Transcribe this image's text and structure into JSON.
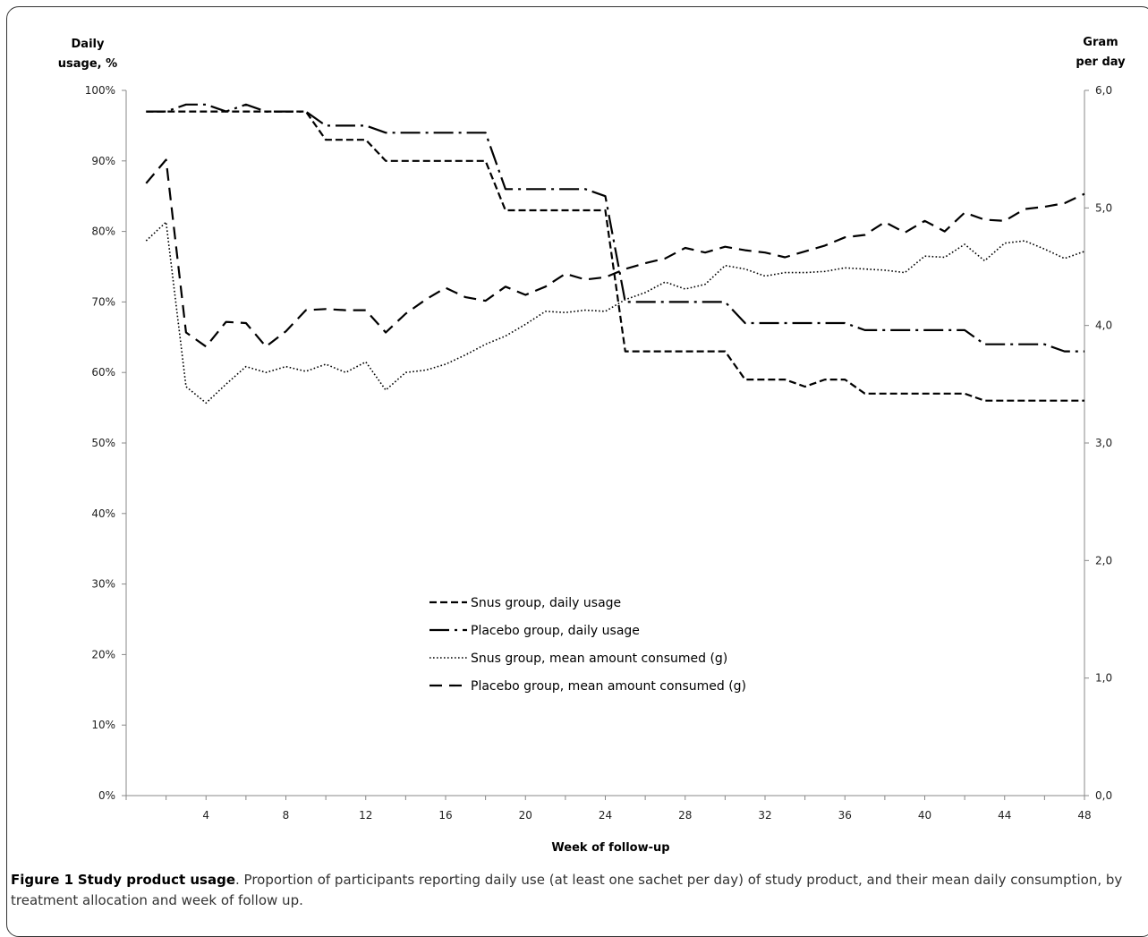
{
  "caption": {
    "label": "Figure 1",
    "title": "Study product usage",
    "text": ". Proportion of participants reporting daily use (at least one sachet per day) of study product, and their mean daily consumption, by treatment allocation and week of follow up."
  },
  "chart_data": {
    "type": "line",
    "xlabel": "Week of follow-up",
    "ylabel_left": [
      "Daily",
      "usage, %"
    ],
    "ylabel_right": [
      "Gram",
      "per day"
    ],
    "xlim": [
      0,
      48
    ],
    "x_ticks": [
      "4",
      "8",
      "12",
      "16",
      "20",
      "24",
      "28",
      "32",
      "36",
      "40",
      "44",
      "48"
    ],
    "ylim_left": [
      0,
      100
    ],
    "y_ticks_left": [
      "0%",
      "10%",
      "20%",
      "30%",
      "40%",
      "50%",
      "60%",
      "70%",
      "80%",
      "90%",
      "100%"
    ],
    "ylim_right": [
      0,
      6
    ],
    "y_ticks_right": [
      "0,0",
      "1,0",
      "2,0",
      "3,0",
      "4,0",
      "5,0",
      "6,0"
    ],
    "grid": false,
    "legend": "center",
    "series": [
      {
        "name": "Snus group, daily usage",
        "axis": "left",
        "style": "short-dash",
        "x": [
          1,
          2,
          3,
          4,
          5,
          6,
          7,
          8,
          9,
          10,
          11,
          12,
          13,
          14,
          15,
          16,
          17,
          18,
          19,
          20,
          21,
          22,
          23,
          24,
          25,
          26,
          27,
          28,
          29,
          30,
          31,
          32,
          33,
          34,
          35,
          36,
          37,
          38,
          39,
          40,
          41,
          42,
          43,
          44,
          45,
          46,
          47,
          48
        ],
        "y": [
          97,
          97,
          97,
          97,
          97,
          97,
          97,
          97,
          97,
          93,
          93,
          93,
          90,
          90,
          90,
          90,
          90,
          90,
          83,
          83,
          83,
          83,
          83,
          83,
          63,
          63,
          63,
          63,
          63,
          63,
          59,
          59,
          59,
          58,
          59,
          59,
          57,
          57,
          57,
          57,
          57,
          57,
          56,
          56,
          56,
          56,
          56,
          56
        ]
      },
      {
        "name": "Placebo group, daily usage",
        "axis": "left",
        "style": "dash-dot",
        "x": [
          1,
          2,
          3,
          4,
          5,
          6,
          7,
          8,
          9,
          10,
          11,
          12,
          13,
          14,
          15,
          16,
          17,
          18,
          19,
          20,
          21,
          22,
          23,
          24,
          25,
          26,
          27,
          28,
          29,
          30,
          31,
          32,
          33,
          34,
          35,
          36,
          37,
          38,
          39,
          40,
          41,
          42,
          43,
          44,
          45,
          46,
          47,
          48
        ],
        "y": [
          97,
          97,
          98,
          98,
          97,
          98,
          97,
          97,
          97,
          95,
          95,
          95,
          94,
          94,
          94,
          94,
          94,
          94,
          86,
          86,
          86,
          86,
          86,
          85,
          70,
          70,
          70,
          70,
          70,
          70,
          67,
          67,
          67,
          67,
          67,
          67,
          66,
          66,
          66,
          66,
          66,
          66,
          64,
          64,
          64,
          64,
          63,
          63
        ]
      },
      {
        "name": "Snus group, mean amount consumed (g)",
        "axis": "right",
        "style": "dotted",
        "x": [
          1,
          2,
          3,
          4,
          5,
          6,
          7,
          8,
          9,
          10,
          11,
          12,
          13,
          14,
          15,
          16,
          17,
          18,
          19,
          20,
          21,
          22,
          23,
          24,
          25,
          26,
          27,
          28,
          29,
          30,
          31,
          32,
          33,
          34,
          35,
          36,
          37,
          38,
          39,
          40,
          41,
          42,
          43,
          44,
          45,
          46,
          47,
          48
        ],
        "y": [
          4.72,
          4.88,
          3.48,
          3.34,
          3.5,
          3.65,
          3.6,
          3.65,
          3.61,
          3.67,
          3.6,
          3.69,
          3.45,
          3.6,
          3.62,
          3.67,
          3.75,
          3.84,
          3.91,
          4.01,
          4.12,
          4.11,
          4.13,
          4.12,
          4.22,
          4.28,
          4.37,
          4.31,
          4.35,
          4.51,
          4.48,
          4.42,
          4.45,
          4.45,
          4.46,
          4.49,
          4.48,
          4.47,
          4.45,
          4.59,
          4.58,
          4.69,
          4.55,
          4.7,
          4.72,
          4.65,
          4.57,
          4.63
        ]
      },
      {
        "name": "Placebo group, mean amount consumed (g)",
        "axis": "right",
        "style": "long-dash",
        "x": [
          1,
          2,
          3,
          4,
          5,
          6,
          7,
          8,
          9,
          10,
          11,
          12,
          13,
          14,
          15,
          16,
          17,
          18,
          19,
          20,
          21,
          22,
          23,
          24,
          25,
          26,
          27,
          28,
          29,
          30,
          31,
          32,
          33,
          34,
          35,
          36,
          37,
          38,
          39,
          40,
          41,
          42,
          43,
          44,
          45,
          46,
          47,
          48
        ],
        "y": [
          5.21,
          5.41,
          3.94,
          3.82,
          4.03,
          4.02,
          3.82,
          3.95,
          4.13,
          4.14,
          4.13,
          4.13,
          3.94,
          4.1,
          4.22,
          4.32,
          4.24,
          4.21,
          4.33,
          4.26,
          4.33,
          4.44,
          4.39,
          4.41,
          4.48,
          4.53,
          4.57,
          4.66,
          4.62,
          4.67,
          4.64,
          4.62,
          4.58,
          4.63,
          4.68,
          4.75,
          4.77,
          4.88,
          4.79,
          4.89,
          4.8,
          4.96,
          4.9,
          4.89,
          4.99,
          5.01,
          5.04,
          5.12
        ]
      }
    ]
  }
}
